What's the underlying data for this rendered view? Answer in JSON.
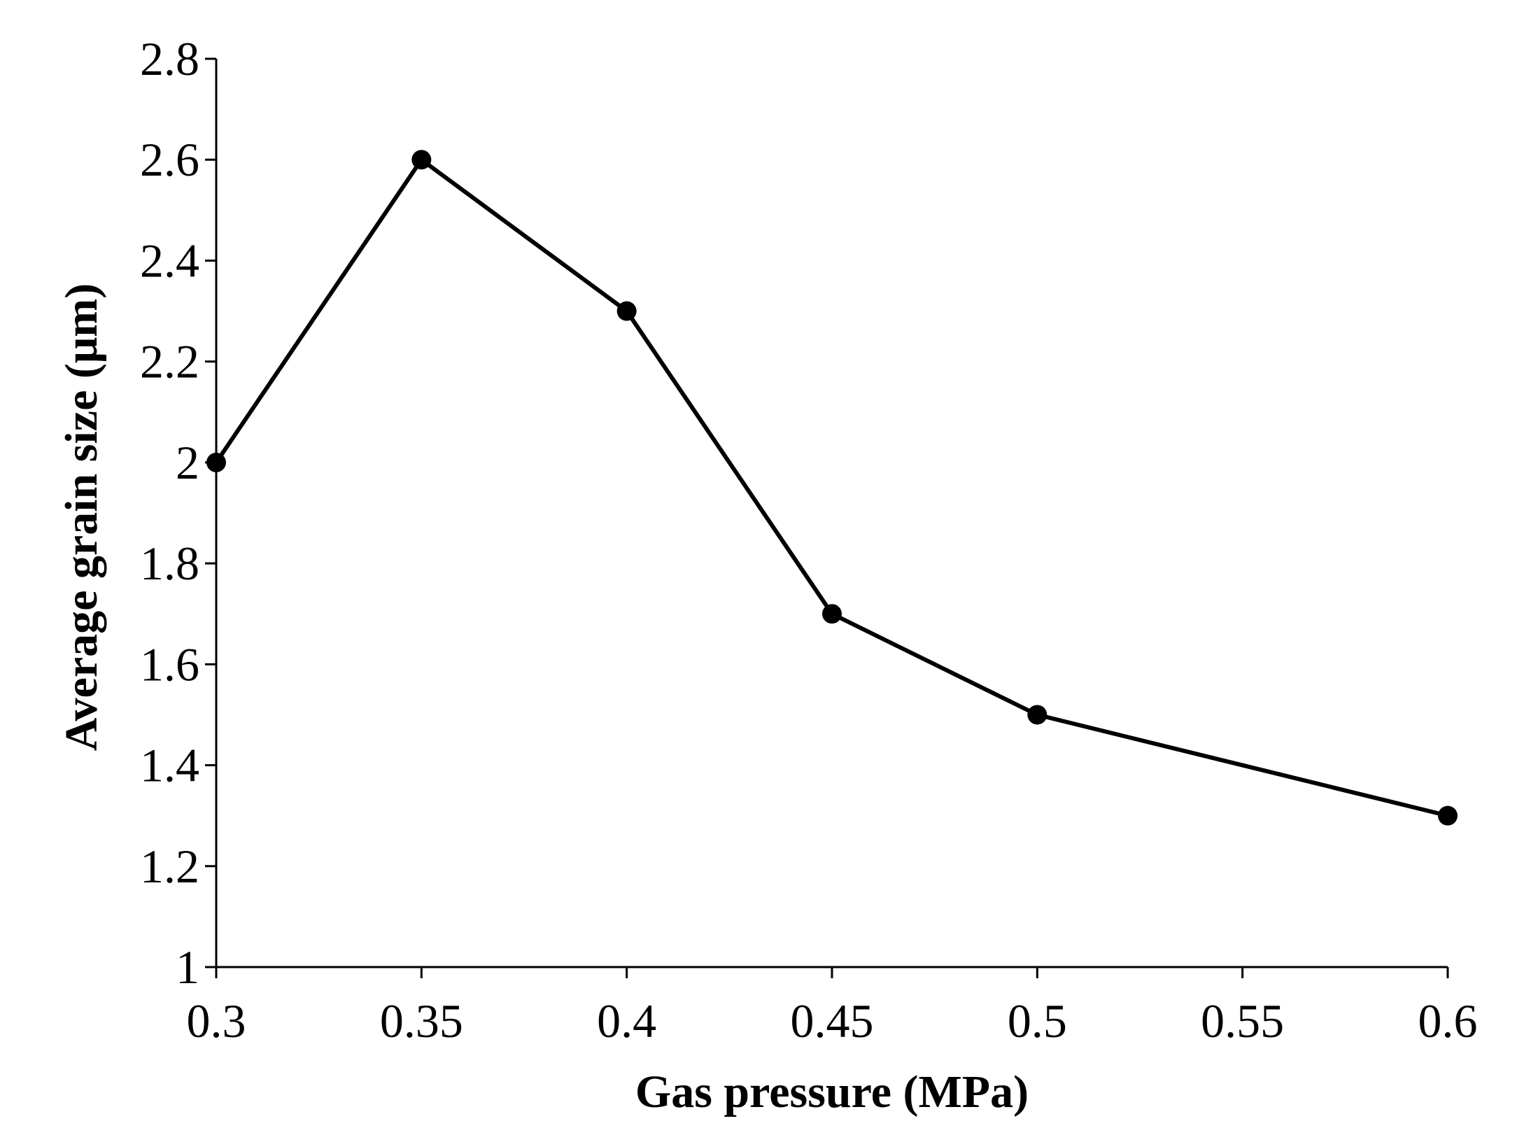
{
  "chart_data": {
    "type": "line",
    "title": "",
    "xlabel": "Gas pressure (MPa)",
    "ylabel": "Average grain size (μm)",
    "x_categories": [
      "0.3",
      "0.35",
      "0.4",
      "0.45",
      "0.5",
      "0.55",
      "0.6"
    ],
    "y_ticks": [
      "1",
      "1.2",
      "1.4",
      "1.6",
      "1.8",
      "2",
      "2.2",
      "2.4",
      "2.6",
      "2.8"
    ],
    "ylim": [
      1,
      2.8
    ],
    "grid": false,
    "legend": "none",
    "series": [
      {
        "name": "Average grain size",
        "color": "#000000",
        "marker": "circle",
        "points": [
          {
            "x_index": 0,
            "x": 0.3,
            "y": 2.0
          },
          {
            "x_index": 1,
            "x": 0.35,
            "y": 2.6
          },
          {
            "x_index": 2,
            "x": 0.4,
            "y": 2.3
          },
          {
            "x_index": 3,
            "x": 0.45,
            "y": 1.7
          },
          {
            "x_index": 4,
            "x": 0.5,
            "y": 1.5
          },
          {
            "x_index": 6,
            "x": 0.6,
            "y": 1.3
          }
        ]
      }
    ]
  }
}
